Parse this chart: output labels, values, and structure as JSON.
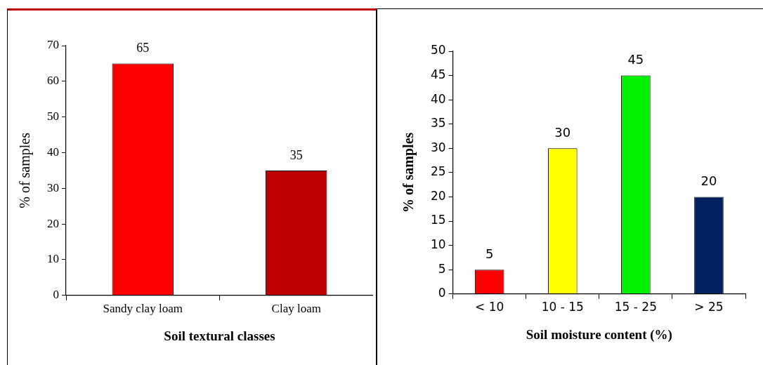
{
  "chart_data": [
    {
      "type": "bar",
      "categories": [
        "Sandy clay loam",
        "Clay loam"
      ],
      "values": [
        65,
        35
      ],
      "colors": [
        "#ff0000",
        "#c00000"
      ],
      "ylim": [
        0,
        70
      ],
      "yticks": [
        0,
        10,
        20,
        30,
        40,
        50,
        60,
        70
      ],
      "ylabel": "% of samples",
      "xlabel": "Soil textural classes",
      "data_labels": true
    },
    {
      "type": "bar",
      "categories": [
        "< 10",
        "10 - 15",
        "15 - 25",
        "> 25"
      ],
      "values": [
        5,
        30,
        45,
        20
      ],
      "colors": [
        "#ff0000",
        "#ffff00",
        "#00f000",
        "#002060"
      ],
      "ylim": [
        0,
        50
      ],
      "yticks": [
        0,
        5,
        10,
        15,
        20,
        25,
        30,
        35,
        40,
        45,
        50
      ],
      "ylabel": "% of samples",
      "xlabel": "Soil moisture content (%)",
      "data_labels": true
    }
  ]
}
